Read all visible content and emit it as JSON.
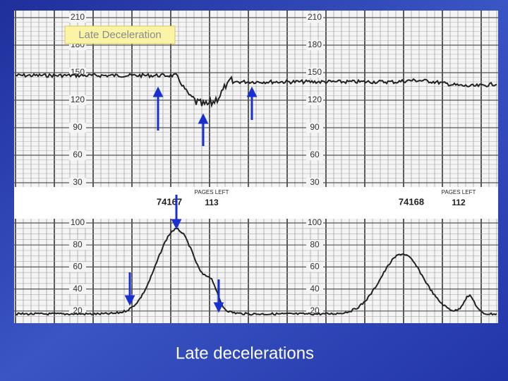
{
  "slide": {
    "caption": "Late decelerations",
    "strip": {
      "label": "Late Deceleration",
      "fhr_scale": [
        "210",
        "180",
        "150",
        "120",
        "90",
        "60",
        "30"
      ],
      "uc_scale": [
        "100",
        "80",
        "60",
        "40",
        "20"
      ],
      "page_marks": [
        {
          "number": "74167",
          "pages": "PAGES LEFT",
          "left": "113"
        },
        {
          "number": "74168",
          "pages": "PAGES LEFT",
          "left": "112"
        }
      ]
    }
  }
}
